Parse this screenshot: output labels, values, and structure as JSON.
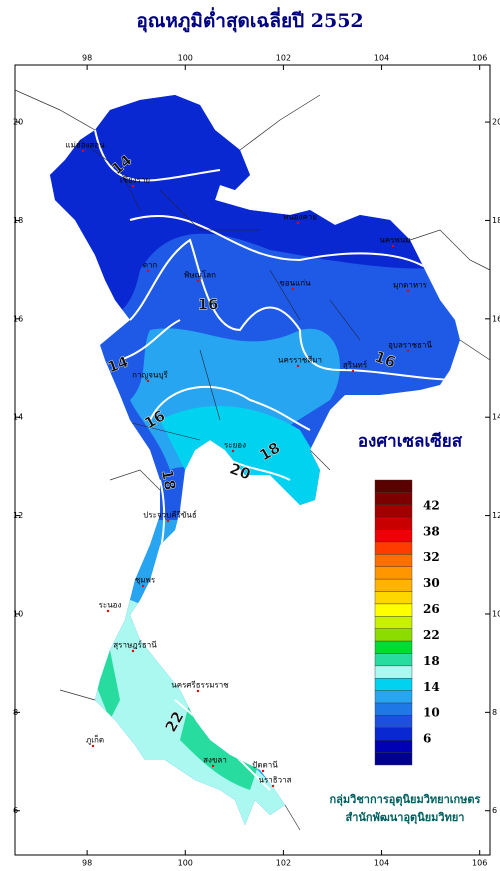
{
  "title": "อุณหภูมิต่ำสุดเฉลี่ยปี 2552",
  "map": {
    "xlim": [
      96.53,
      106.21
    ],
    "ylim": [
      5.1,
      21.16
    ],
    "xticks": [
      98,
      100,
      102,
      104,
      106
    ],
    "yticks": [
      6,
      8,
      10,
      12,
      14,
      16,
      18,
      20
    ],
    "places": [
      "แม่ฮ่องสอน",
      "เชียงราย",
      "ตาก",
      "พิษณุโลก",
      "หนองคาย",
      "นครพนม",
      "มุกดาหาร",
      "ขอนแก่น",
      "อุบลราชธานี",
      "สุรินทร์",
      "นครราชสีมา",
      "กาญจนบุรี",
      "ระยอง",
      "ประจวบคีรีขันธ์",
      "ชุมพร",
      "ระนอง",
      "สุราษฎร์ธานี",
      "นครศรีธรรมราช",
      "ภูเก็ต",
      "สงขลา",
      "ปัตตานี",
      "นราธิวาส"
    ],
    "contour_labels": [
      14,
      14,
      16,
      16,
      16,
      18,
      18,
      20,
      22
    ]
  },
  "legend": {
    "title": "องศาเซลเซียส",
    "colors": [
      "#5a0000",
      "#7d0000",
      "#a00000",
      "#c80000",
      "#f00000",
      "#ff3c00",
      "#ff6e00",
      "#ff9600",
      "#ffb400",
      "#ffd700",
      "#ffff00",
      "#c8f000",
      "#8cdc00",
      "#00dc32",
      "#28dca0",
      "#aaf8f0",
      "#00d2f0",
      "#28a5f0",
      "#1e78e6",
      "#1e50dc",
      "#0a28d2",
      "#0000b4",
      "#000090"
    ],
    "labels": [
      42,
      38,
      32,
      30,
      26,
      22,
      18,
      14,
      10,
      6
    ]
  },
  "credits": [
    "กลุ่มวิชาการอุตุนิยมวิทยาเกษตร",
    "สำนักพัฒนาอุตุนิยมวิทยา"
  ]
}
